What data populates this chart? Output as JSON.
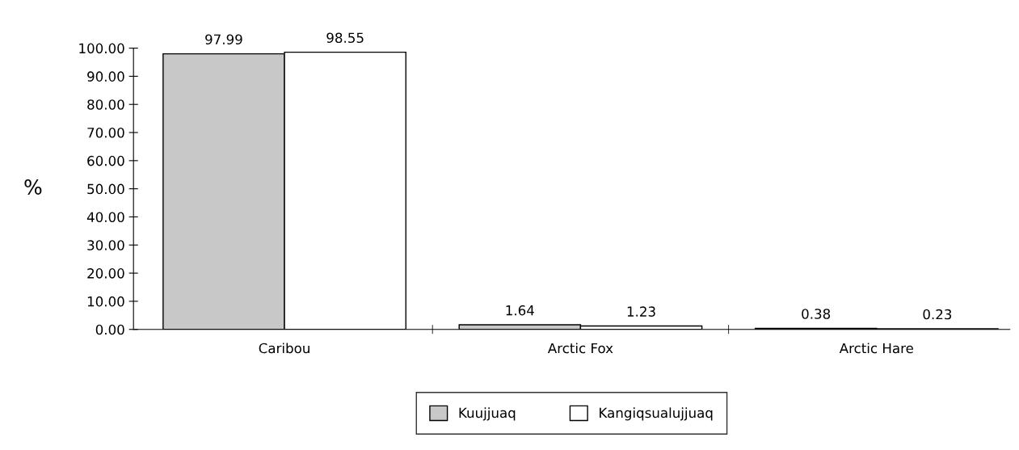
{
  "chart_data": {
    "type": "bar",
    "ylabel": "%",
    "categories": [
      "Caribou",
      "Arctic Fox",
      "Arctic Hare"
    ],
    "series": [
      {
        "name": "Kuujjuaq",
        "color": "#c8c8c8",
        "values": [
          97.99,
          1.64,
          0.38
        ]
      },
      {
        "name": "Kangiqsualujjuaq",
        "color": "#ffffff",
        "values": [
          98.55,
          1.23,
          0.23
        ]
      }
    ],
    "ylim": [
      0,
      100
    ],
    "yticks": [
      {
        "value": 0,
        "label": "0.00"
      },
      {
        "value": 10,
        "label": "10.00"
      },
      {
        "value": 20,
        "label": "20.00"
      },
      {
        "value": 30,
        "label": "30.00"
      },
      {
        "value": 40,
        "label": "40.00"
      },
      {
        "value": 50,
        "label": "50.00"
      },
      {
        "value": 60,
        "label": "60.00"
      },
      {
        "value": 70,
        "label": "70.00"
      },
      {
        "value": 80,
        "label": "80.00"
      },
      {
        "value": 90,
        "label": "90.00"
      },
      {
        "value": 100,
        "label": "100.00"
      }
    ],
    "data_labels": true,
    "grid": false,
    "legend": "bottom"
  }
}
